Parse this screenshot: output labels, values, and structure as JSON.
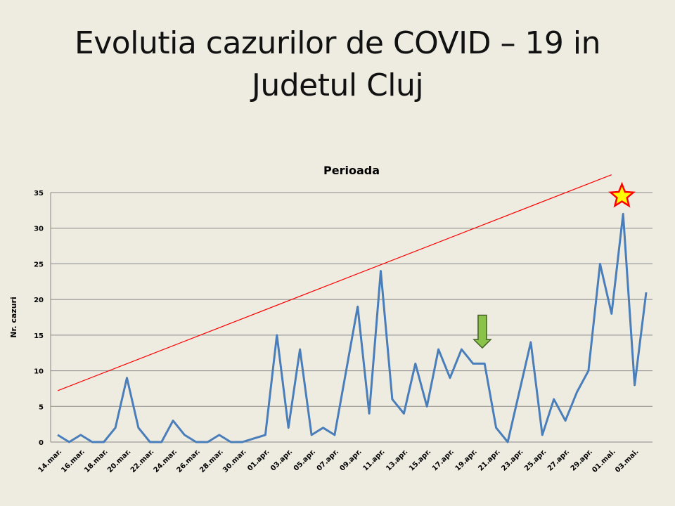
{
  "slide": {
    "title_line1": "Evolutia cazurilor de COVID – 19 in",
    "title_line2": "Judetul Cluj"
  },
  "chart_data": {
    "type": "line",
    "title": "Perioada",
    "xlabel": "",
    "ylabel": "Nr. cazuri",
    "ylim": [
      0,
      35
    ],
    "yticks": [
      0,
      5,
      10,
      15,
      20,
      25,
      30,
      35
    ],
    "grid": true,
    "x": [
      "14.mar.",
      "15.mar.",
      "16.mar.",
      "17.mar.",
      "18.mar.",
      "19.mar.",
      "20.mar.",
      "21.mar.",
      "22.mar.",
      "23.mar.",
      "24.mar.",
      "25.mar.",
      "26.mar.",
      "27.mar.",
      "28.mar.",
      "29.mar.",
      "30.mar.",
      "31.mar.",
      "01.apr.",
      "02.apr.",
      "03.apr.",
      "04.apr.",
      "05.apr.",
      "06.apr.",
      "07.apr.",
      "08.apr.",
      "09.apr.",
      "10.apr.",
      "11.apr.",
      "12.apr.",
      "13.apr.",
      "14.apr.",
      "15.apr.",
      "16.apr.",
      "17.apr.",
      "18.apr.",
      "19.apr.",
      "20.apr.",
      "21.apr.",
      "22.apr.",
      "23.apr.",
      "24.apr.",
      "25.apr.",
      "26.apr.",
      "27.apr.",
      "28.apr.",
      "29.apr.",
      "30.apr.",
      "01.mai.",
      "02.mai.",
      "03.mai.",
      "04.mai."
    ],
    "tick_labels": [
      "14.mar.",
      "16.mar.",
      "18.mar.",
      "20.mar.",
      "22.mar.",
      "24.mar.",
      "26.mar.",
      "28.mar.",
      "30.mar.",
      "01.apr.",
      "03.apr.",
      "05.apr.",
      "07.apr.",
      "09.apr.",
      "11.apr.",
      "13.apr.",
      "15.apr.",
      "17.apr.",
      "19.apr.",
      "21.apr.",
      "23.apr.",
      "25.apr.",
      "27.apr.",
      "29.apr.",
      "01.mai.",
      "03.mai."
    ],
    "series": [
      {
        "color": "#4a7ebb",
        "values": [
          1,
          0,
          1,
          0,
          0,
          2,
          9,
          2,
          0,
          0,
          3,
          1,
          0,
          0,
          1,
          0,
          0,
          0.5,
          1,
          15,
          2,
          13,
          1,
          2,
          1,
          10,
          19,
          4,
          24,
          6,
          4,
          11,
          5,
          13,
          9,
          13,
          11,
          11,
          2,
          0,
          7,
          14,
          1,
          6,
          3,
          7,
          10,
          25,
          18,
          32,
          8,
          21
        ]
      }
    ],
    "trendline": {
      "color": "#ff0000",
      "start": 7.2,
      "end": 37.5
    },
    "annotations": [
      {
        "type": "arrow",
        "color": "#8bc34a",
        "x_index": 36.8,
        "y_top": 17.8,
        "y_bottom": 13.2
      },
      {
        "type": "star",
        "color": "#ffff00",
        "stroke": "#ff0000",
        "x_index": 48.9,
        "y": 34.5
      }
    ]
  }
}
